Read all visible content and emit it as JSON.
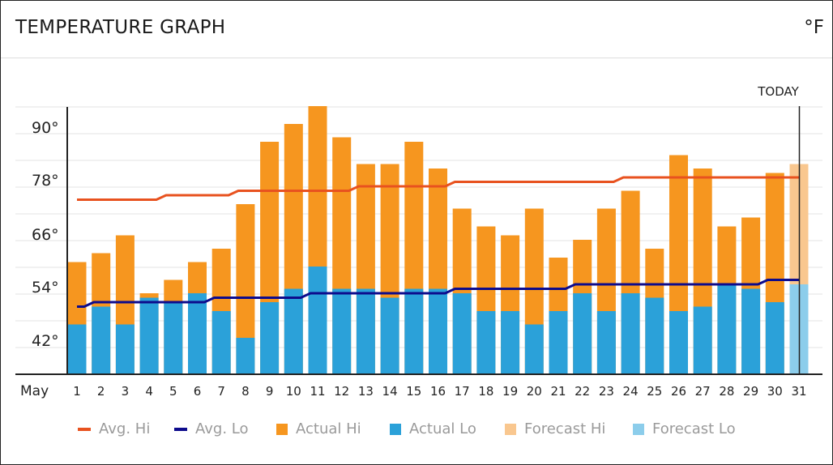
{
  "header": {
    "title": "TEMPERATURE GRAPH",
    "unit": "°F"
  },
  "legend": {
    "avg_hi": "Avg. Hi",
    "avg_lo": "Avg. Lo",
    "actual_hi": "Actual Hi",
    "actual_lo": "Actual Lo",
    "forecast_hi": "Forecast Hi",
    "forecast_lo": "Forecast Lo"
  },
  "colors": {
    "actual_hi": "#f6961f",
    "actual_lo": "#2ba1d9",
    "forecast_hi": "#f9c78f",
    "forecast_lo": "#8ccdeb",
    "avg_hi": "#e8521f",
    "avg_lo": "#0d0b8c",
    "grid": "#e3e3e3"
  },
  "chart_data": {
    "type": "bar",
    "title": "TEMPERATURE GRAPH",
    "unit": "°F",
    "month_label": "May",
    "today_label": "TODAY",
    "today_day": "31",
    "x": [
      "1",
      "2",
      "3",
      "4",
      "5",
      "6",
      "7",
      "8",
      "9",
      "10",
      "11",
      "12",
      "13",
      "14",
      "15",
      "16",
      "17",
      "18",
      "19",
      "20",
      "21",
      "22",
      "23",
      "24",
      "25",
      "26",
      "27",
      "28",
      "29",
      "30",
      "31"
    ],
    "yticks": [
      42,
      54,
      66,
      78,
      90
    ],
    "ytick_labels": [
      "42°",
      "54°",
      "66°",
      "78°",
      "90°"
    ],
    "ylim": [
      34,
      94
    ],
    "grid": true,
    "series": [
      {
        "name": "Actual Hi",
        "values": [
          59,
          61,
          65,
          52,
          55,
          59,
          62,
          72,
          86,
          90,
          94,
          87,
          81,
          81,
          86,
          80,
          71,
          67,
          65,
          71,
          60,
          64,
          71,
          75,
          62,
          83,
          80,
          67,
          69,
          79,
          null
        ]
      },
      {
        "name": "Actual Lo",
        "values": [
          45,
          49,
          45,
          51,
          50,
          52,
          48,
          42,
          50,
          53,
          58,
          53,
          53,
          51,
          53,
          53,
          52,
          48,
          48,
          45,
          48,
          52,
          48,
          52,
          51,
          48,
          49,
          54,
          53,
          50,
          null
        ]
      },
      {
        "name": "Forecast Hi",
        "values": [
          null,
          null,
          null,
          null,
          null,
          null,
          null,
          null,
          null,
          null,
          null,
          null,
          null,
          null,
          null,
          null,
          null,
          null,
          null,
          null,
          null,
          null,
          null,
          null,
          null,
          null,
          null,
          null,
          null,
          null,
          81
        ]
      },
      {
        "name": "Forecast Lo",
        "values": [
          null,
          null,
          null,
          null,
          null,
          null,
          null,
          null,
          null,
          null,
          null,
          null,
          null,
          null,
          null,
          null,
          null,
          null,
          null,
          null,
          null,
          null,
          null,
          null,
          null,
          null,
          null,
          null,
          null,
          null,
          54
        ]
      },
      {
        "name": "Avg. Hi",
        "values": [
          73,
          73,
          73,
          73,
          74,
          74,
          74,
          75,
          75,
          75,
          75,
          75,
          76,
          76,
          76,
          76,
          77,
          77,
          77,
          77,
          77,
          77,
          77,
          78,
          78,
          78,
          78,
          78,
          78,
          78,
          78
        ]
      },
      {
        "name": "Avg. Lo",
        "values": [
          49,
          50,
          50,
          50,
          50,
          50,
          51,
          51,
          51,
          51,
          52,
          52,
          52,
          52,
          52,
          52,
          53,
          53,
          53,
          53,
          53,
          54,
          54,
          54,
          54,
          54,
          54,
          54,
          54,
          55,
          55
        ]
      }
    ]
  }
}
